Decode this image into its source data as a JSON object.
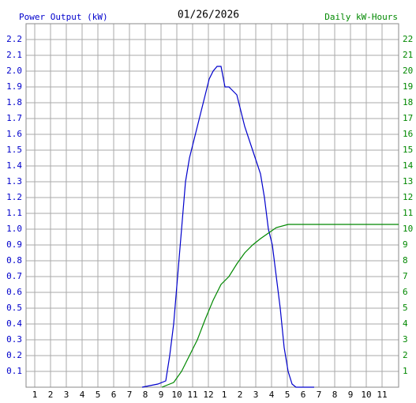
{
  "chart_data": {
    "type": "line",
    "title": "01/26/2026",
    "ylabel": "Power Output (kW)",
    "y2label": "Daily kW-Hours",
    "xlim": [
      0.45,
      24.05
    ],
    "xticks": [
      1,
      2,
      3,
      4,
      5,
      6,
      7,
      8,
      9,
      10,
      11,
      12,
      {
        "value": 13,
        "label": "1"
      },
      {
        "value": 14,
        "label": "2"
      },
      {
        "value": 15,
        "label": "3"
      },
      {
        "value": 16,
        "label": "4"
      },
      {
        "value": 17,
        "label": "5"
      },
      {
        "value": 18,
        "label": "6"
      },
      {
        "value": 19,
        "label": "7"
      },
      {
        "value": 20,
        "label": "8"
      },
      {
        "value": 21,
        "label": "9"
      },
      {
        "value": 22,
        "label": "10"
      },
      {
        "value": 23,
        "label": "11"
      }
    ],
    "ylim": [
      0,
      2.3
    ],
    "yticks": [
      0.1,
      0.2,
      0.3,
      0.4,
      0.5,
      0.6,
      0.7,
      0.8,
      0.9,
      {
        "value": 1,
        "label": "1.0"
      },
      1.1,
      1.2,
      1.3,
      1.4,
      1.5,
      1.6,
      1.7,
      1.8,
      1.9,
      {
        "value": 2,
        "label": "2.0"
      },
      2.1,
      2.2
    ],
    "y2lim": [
      0,
      23
    ],
    "y2ticks": [
      1,
      2,
      3,
      4,
      5,
      6,
      7,
      8,
      9,
      10,
      11,
      12,
      13,
      14,
      15,
      16,
      17,
      18,
      19,
      20,
      21,
      22
    ],
    "grid": true,
    "series": [
      {
        "color": "#0000cc",
        "axis": "y",
        "x": [
          7.8,
          8.8,
          9.3,
          9.55,
          9.8,
          10.05,
          10.3,
          10.55,
          10.8,
          11.05,
          11.3,
          11.55,
          11.8,
          12.05,
          12.3,
          12.55,
          12.8,
          13.05,
          13.3,
          13.8,
          14.3,
          14.8,
          15.3,
          15.55,
          15.8,
          16.05,
          16.3,
          16.55,
          16.8,
          17.05,
          17.3,
          17.55,
          18.7
        ],
        "values": [
          0,
          0.02,
          0.04,
          0.2,
          0.4,
          0.7,
          1.0,
          1.3,
          1.45,
          1.55,
          1.65,
          1.75,
          1.85,
          1.95,
          2.0,
          2.03,
          2.03,
          1.9,
          1.9,
          1.85,
          1.65,
          1.5,
          1.35,
          1.2,
          1.0,
          0.9,
          0.7,
          0.5,
          0.25,
          0.1,
          0.02,
          0,
          0
        ]
      },
      {
        "color": "#008800",
        "axis": "y2",
        "x": [
          9.05,
          9.8,
          10.3,
          10.8,
          11.3,
          11.8,
          12.3,
          12.8,
          13.3,
          13.8,
          14.3,
          14.8,
          15.3,
          15.8,
          16.3,
          17.05,
          24.05
        ],
        "values": [
          0,
          0.3,
          1.0,
          2.0,
          3.0,
          4.3,
          5.5,
          6.5,
          7.0,
          7.8,
          8.5,
          9.0,
          9.4,
          9.75,
          10.1,
          10.3,
          10.3
        ]
      }
    ]
  }
}
